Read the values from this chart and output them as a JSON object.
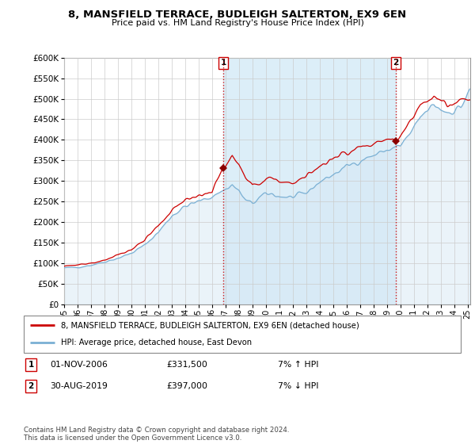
{
  "title": "8, MANSFIELD TERRACE, BUDLEIGH SALTERTON, EX9 6EN",
  "subtitle": "Price paid vs. HM Land Registry's House Price Index (HPI)",
  "legend_line1": "8, MANSFIELD TERRACE, BUDLEIGH SALTERTON, EX9 6EN (detached house)",
  "legend_line2": "HPI: Average price, detached house, East Devon",
  "transaction1_date": "01-NOV-2006",
  "transaction1_price": "£331,500",
  "transaction1_hpi": "7% ↑ HPI",
  "transaction2_date": "30-AUG-2019",
  "transaction2_price": "£397,000",
  "transaction2_hpi": "7% ↓ HPI",
  "footnote": "Contains HM Land Registry data © Crown copyright and database right 2024.\nThis data is licensed under the Open Government Licence v3.0.",
  "hpi_color": "#7ab0d4",
  "hpi_fill_color": "#d6e8f5",
  "price_color": "#cc0000",
  "marker_color": "#8b0000",
  "dashed_color": "#cc0000",
  "shade_color": "#dceef8",
  "ylim_min": 0,
  "ylim_max": 600000,
  "yticks": [
    0,
    50000,
    100000,
    150000,
    200000,
    250000,
    300000,
    350000,
    400000,
    450000,
    500000,
    550000,
    600000
  ],
  "xlim_min": 1995.0,
  "xlim_max": 2025.2,
  "transaction1_x": 2006.833,
  "transaction1_y": 331500,
  "transaction2_x": 2019.667,
  "transaction2_y": 397000
}
